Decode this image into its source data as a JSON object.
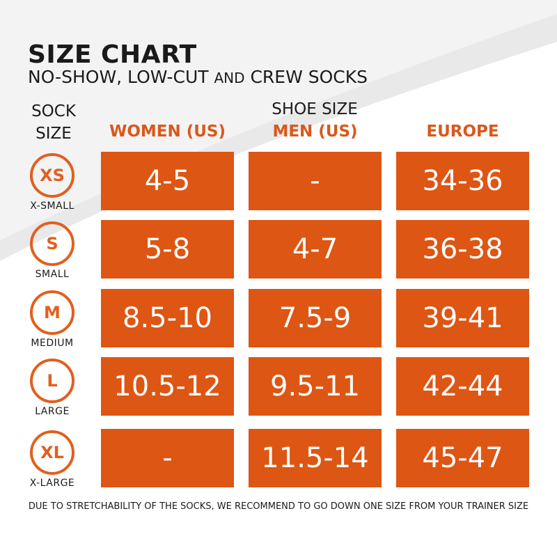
{
  "title": "SIZE CHART",
  "subtitle": {
    "part1": "NO-SHOW, LOW-CUT ",
    "part2": "AND",
    "part3": " CREW SOCKS"
  },
  "headers": {
    "sock_size_line1": "SOCK",
    "sock_size_line2": "SIZE",
    "shoe_size": "SHOE SIZE",
    "women": "WOMEN (US)",
    "men": "MEN (US)",
    "europe": "EUROPE"
  },
  "rows": [
    {
      "code": "XS",
      "name": "X-SMALL",
      "women": "4-5",
      "men": "-",
      "europe": "34-36"
    },
    {
      "code": "S",
      "name": "SMALL",
      "women": "5-8",
      "men": "4-7",
      "europe": "36-38"
    },
    {
      "code": "M",
      "name": "MEDIUM",
      "women": "8.5-10",
      "men": "7.5-9",
      "europe": "39-41"
    },
    {
      "code": "L",
      "name": "LARGE",
      "women": "10.5-12",
      "men": "9.5-11",
      "europe": "42-44"
    },
    {
      "code": "XL",
      "name": "X-LARGE",
      "women": "-",
      "men": "11.5-14",
      "europe": "45-47"
    }
  ],
  "footnote": "DUE TO STRETCHABILITY OF THE SOCKS, WE RECOMMEND TO GO DOWN ONE SIZE FROM YOUR TRAINER SIZE",
  "colors": {
    "accent": "#dd5613",
    "badge": "#e06020",
    "header_orange": "#d9581c",
    "text": "#1a1a1a"
  }
}
